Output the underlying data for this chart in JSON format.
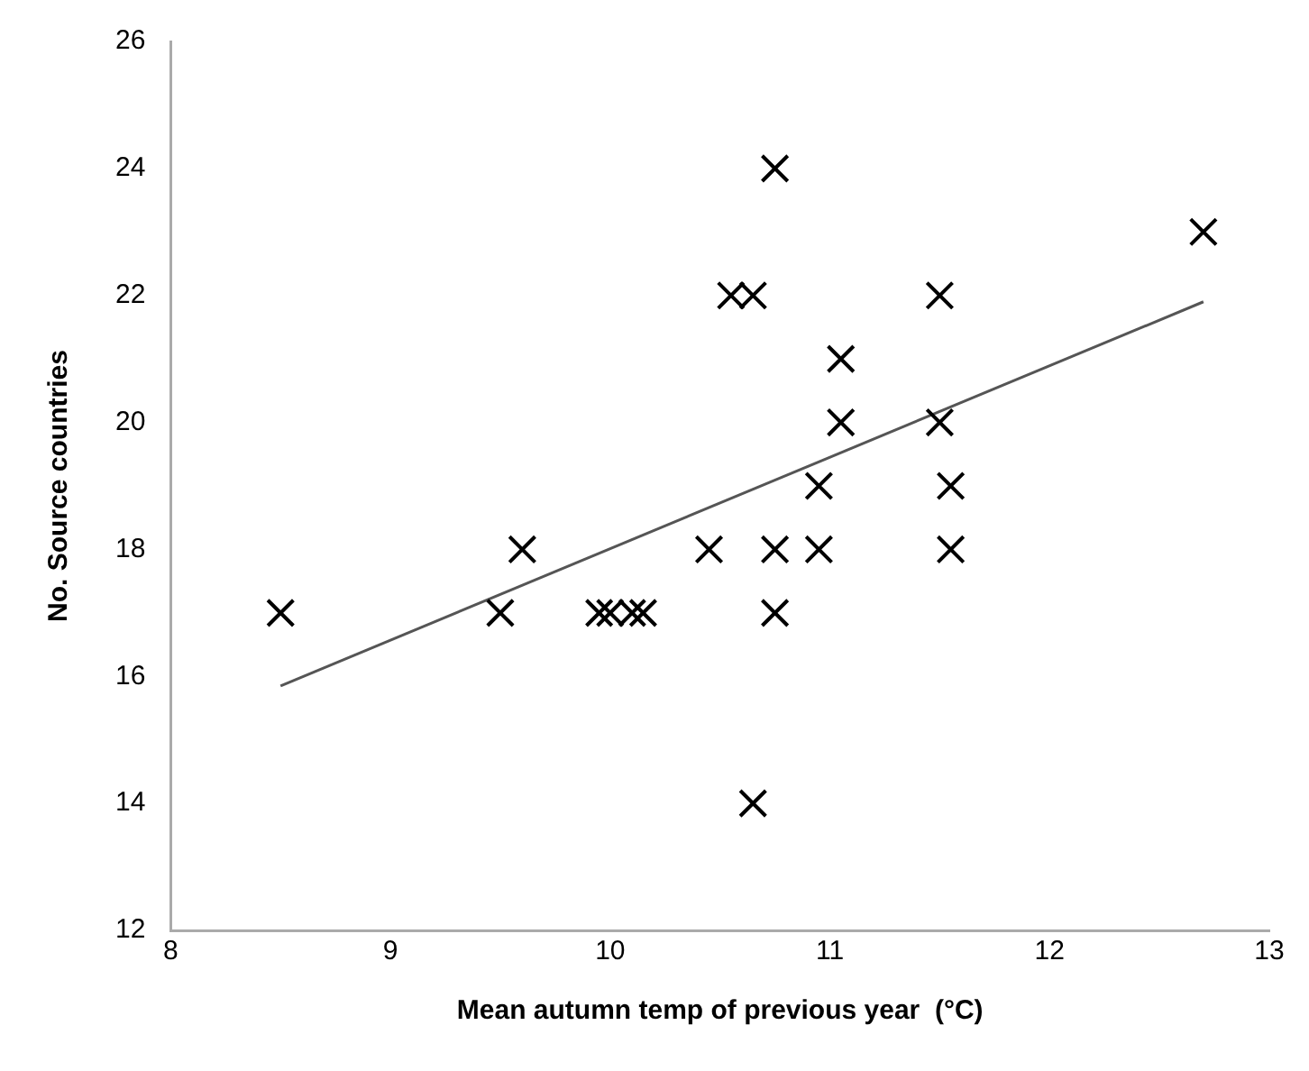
{
  "chart_data": {
    "type": "scatter",
    "xlabel": "Mean autumn temp of previous year  (°C)",
    "ylabel": "No. Source countries",
    "series": [
      {
        "color": "#000000",
        "marker": "cross",
        "x": [
          8.5,
          9.5,
          9.6,
          9.95,
          10,
          10.1,
          10.15,
          10.45,
          10.75,
          10.95,
          10.75,
          10.65,
          10.75,
          10.55,
          10.65,
          11.5,
          11.05,
          11.05,
          11.5,
          10.95,
          11.55,
          11.55,
          12.7
        ],
        "values": [
          17,
          17,
          18,
          17,
          17,
          17,
          17,
          18,
          18,
          18,
          17,
          14,
          24,
          22,
          22,
          22,
          21,
          20,
          20,
          19,
          19,
          18,
          23
        ]
      },
      {
        "type": "line",
        "marker": "none",
        "color": "#555555",
        "x": [
          8.5,
          12.7
        ],
        "values": [
          15.85,
          21.9
        ]
      }
    ],
    "xlim": [
      8,
      13
    ],
    "xticks": [
      8,
      9,
      10,
      11,
      12,
      13
    ],
    "ylim": [
      12,
      26
    ],
    "yticks": [
      12,
      14,
      16,
      18,
      20,
      22,
      24,
      26
    ],
    "grid": false,
    "legend": false
  }
}
